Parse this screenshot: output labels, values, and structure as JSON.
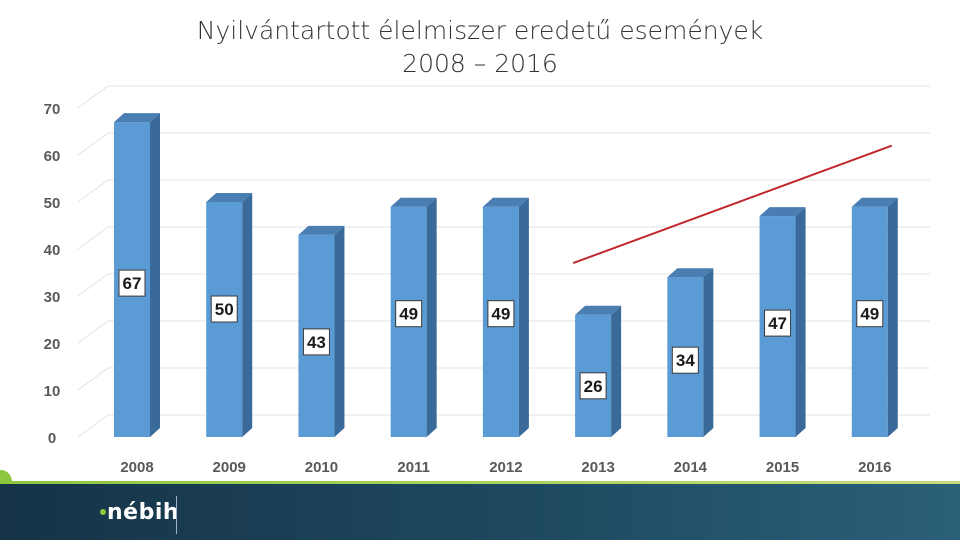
{
  "chart_data": {
    "type": "bar",
    "title_line1": "Nyilvántartott élelmiszer eredetű események",
    "title_line2": "2008 – 2016",
    "categories": [
      "2008",
      "2009",
      "2010",
      "2011",
      "2012",
      "2013",
      "2014",
      "2015",
      "2016"
    ],
    "values": [
      67,
      50,
      43,
      49,
      49,
      26,
      34,
      47,
      49
    ],
    "yticks": [
      0,
      10,
      20,
      30,
      40,
      50,
      60,
      70
    ],
    "ylim": [
      0,
      70
    ],
    "grid": true,
    "trendline": {
      "from": {
        "x": "2013",
        "y": 37
      },
      "to": {
        "x": "2016",
        "y": 62
      },
      "color": "#c0282d"
    },
    "bar_color": "#5b9bd5",
    "bar_side_color": "#3a6a9a",
    "bar_top_color": "#4a7eb3"
  },
  "footer": {
    "logo_text": "nébih",
    "background_color": "#1e4960",
    "accent_color": "#8cc63f"
  }
}
